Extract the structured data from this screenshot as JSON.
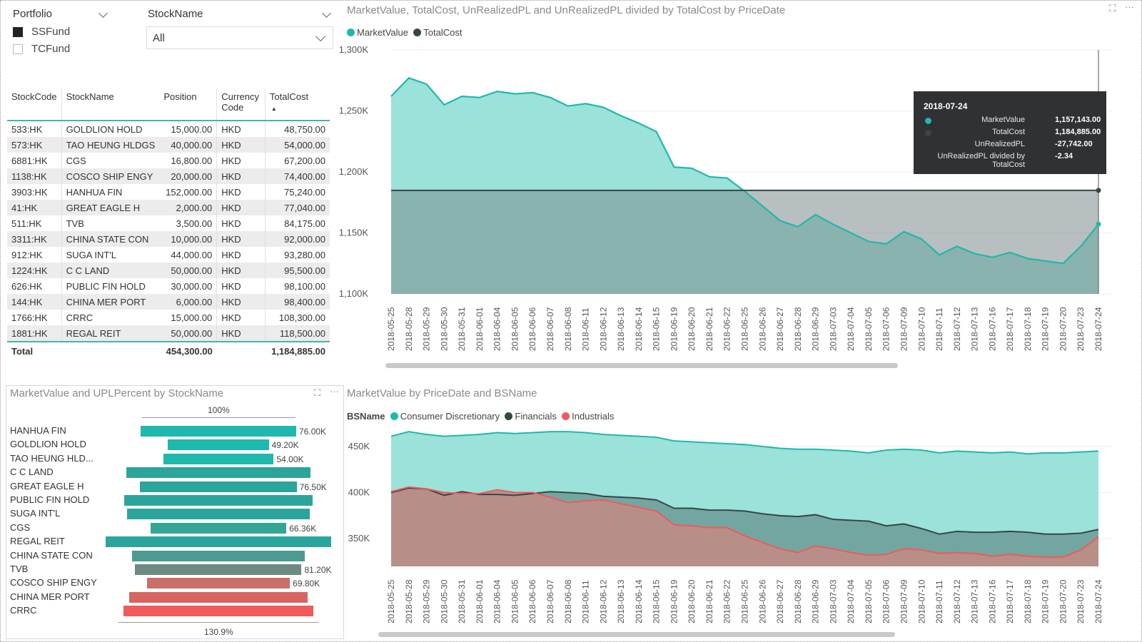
{
  "slicers": {
    "portfolio": {
      "title": "Portfolio",
      "items": [
        {
          "label": "SSFund",
          "checked": true
        },
        {
          "label": "TCFund",
          "checked": false
        }
      ]
    },
    "stockname": {
      "title": "StockName",
      "selected": "All"
    }
  },
  "table": {
    "headers": [
      "StockCode",
      "StockName",
      "Position",
      "Currency Code",
      "TotalCost"
    ],
    "rows": [
      [
        "533:HK",
        "GOLDLION HOLD",
        "15,000.00",
        "HKD",
        "48,750.00"
      ],
      [
        "573:HK",
        "TAO HEUNG HLDGS",
        "40,000.00",
        "HKD",
        "54,000.00"
      ],
      [
        "6881:HK",
        "CGS",
        "16,800.00",
        "HKD",
        "67,200.00"
      ],
      [
        "1138:HK",
        "COSCO SHIP ENGY",
        "20,000.00",
        "HKD",
        "74,400.00"
      ],
      [
        "3903:HK",
        "HANHUA FIN",
        "152,000.00",
        "HKD",
        "75,240.00"
      ],
      [
        "41:HK",
        "GREAT EAGLE H",
        "2,000.00",
        "HKD",
        "77,040.00"
      ],
      [
        "511:HK",
        "TVB",
        "3,500.00",
        "HKD",
        "84,175.00"
      ],
      [
        "3311:HK",
        "CHINA STATE CON",
        "10,000.00",
        "HKD",
        "92,000.00"
      ],
      [
        "912:HK",
        "SUGA INT'L",
        "44,000.00",
        "HKD",
        "93,280.00"
      ],
      [
        "1224:HK",
        "C C LAND",
        "50,000.00",
        "HKD",
        "95,500.00"
      ],
      [
        "626:HK",
        "PUBLIC FIN HOLD",
        "30,000.00",
        "HKD",
        "98,100.00"
      ],
      [
        "144:HK",
        "CHINA MER PORT",
        "6,000.00",
        "HKD",
        "98,400.00"
      ],
      [
        "1766:HK",
        "CRRC",
        "15,000.00",
        "HKD",
        "108,300.00"
      ],
      [
        "1881:HK",
        "REGAL REIT",
        "50,000.00",
        "HKD",
        "118,500.00"
      ]
    ],
    "total": {
      "label": "Total",
      "position": "454,300.00",
      "totalcost": "1,184,885.00"
    }
  },
  "chart_data": [
    {
      "type": "area",
      "title": "MarketValue, TotalCost, UnRealizedPL and UnRealizedPL divided by TotalCost by PriceDate",
      "categories": [
        "2018-05-25",
        "2018-05-28",
        "2018-05-29",
        "2018-05-30",
        "2018-05-31",
        "2018-06-01",
        "2018-06-04",
        "2018-06-05",
        "2018-06-06",
        "2018-06-07",
        "2018-06-08",
        "2018-06-11",
        "2018-06-12",
        "2018-06-13",
        "2018-06-14",
        "2018-06-15",
        "2018-06-19",
        "2018-06-20",
        "2018-06-21",
        "2018-06-22",
        "2018-06-25",
        "2018-06-26",
        "2018-06-27",
        "2018-06-28",
        "2018-06-29",
        "2018-07-03",
        "2018-07-04",
        "2018-07-05",
        "2018-07-06",
        "2018-07-09",
        "2018-07-10",
        "2018-07-11",
        "2018-07-12",
        "2018-07-13",
        "2018-07-16",
        "2018-07-17",
        "2018-07-18",
        "2018-07-19",
        "2018-07-20",
        "2018-07-23",
        "2018-07-24"
      ],
      "series": [
        {
          "name": "MarketValue",
          "color": "#1fb8ac",
          "values": [
            1262000,
            1277000,
            1272000,
            1255000,
            1262000,
            1261000,
            1266000,
            1264000,
            1265000,
            1261000,
            1254000,
            1256000,
            1253000,
            1246000,
            1240000,
            1233000,
            1204000,
            1203000,
            1196000,
            1195000,
            1184000,
            1172000,
            1160000,
            1155000,
            1165000,
            1157000,
            1150000,
            1143000,
            1141000,
            1151000,
            1145000,
            1132000,
            1139000,
            1133000,
            1130000,
            1134000,
            1129000,
            1127000,
            1125000,
            1139000,
            1157143
          ]
        },
        {
          "name": "TotalCost",
          "color": "#374649",
          "values": [
            1184885,
            1184885,
            1184885,
            1184885,
            1184885,
            1184885,
            1184885,
            1184885,
            1184885,
            1184885,
            1184885,
            1184885,
            1184885,
            1184885,
            1184885,
            1184885,
            1184885,
            1184885,
            1184885,
            1184885,
            1184885,
            1184885,
            1184885,
            1184885,
            1184885,
            1184885,
            1184885,
            1184885,
            1184885,
            1184885,
            1184885,
            1184885,
            1184885,
            1184885,
            1184885,
            1184885,
            1184885,
            1184885,
            1184885,
            1184885,
            1184885
          ]
        }
      ],
      "yticks": [
        "1,100K",
        "1,150K",
        "1,200K",
        "1,250K",
        "1,300K"
      ],
      "ylim": [
        1100000,
        1300000
      ],
      "tooltip": {
        "date": "2018-07-24",
        "rows": [
          {
            "label": "MarketValue",
            "value": "1,157,143.00",
            "color": "#1fb8ac"
          },
          {
            "label": "TotalCost",
            "value": "1,184,885.00",
            "color": "#374649"
          },
          {
            "label": "UnRealizedPL",
            "value": "-27,742.00"
          },
          {
            "label": "UnRealizedPL divided by TotalCost",
            "value": "-2.34"
          }
        ]
      }
    },
    {
      "type": "bar",
      "title": "MarketValue and UPLPercent by StockName",
      "top_label": "100%",
      "bottom_label": "130.9%",
      "categories": [
        "HANHUA FIN",
        "GOLDLION HOLD",
        "TAO HEUNG HLD...",
        "C C LAND",
        "GREAT EAGLE H",
        "PUBLIC FIN HOLD",
        "SUGA INT'L",
        "CGS",
        "REGAL REIT",
        "CHINA STATE CON",
        "TVB",
        "COSCO SHIP ENGY",
        "CHINA MER PORT",
        "CRRC"
      ],
      "values": [
        76000,
        49200,
        54000,
        90000,
        76500,
        92000,
        89000,
        66360,
        110000,
        84000,
        81200,
        69800,
        87000,
        93000
      ],
      "upl_percent": [
        101,
        101,
        101,
        94,
        99,
        94,
        95,
        99,
        93,
        91,
        96,
        94,
        88,
        85
      ],
      "value_labels": [
        "76.00K",
        "49.20K",
        "54.00K",
        "",
        "76.50K",
        "",
        "",
        "66.36K",
        "",
        "",
        "81.20K",
        "69.80K",
        "",
        ""
      ],
      "colors": [
        "#1fb8ac",
        "#1fb8ac",
        "#1fb8ac",
        "#2ba59c",
        "#2ba59c",
        "#2ba59c",
        "#2ba59c",
        "#33a596",
        "#2ba59c",
        "#4d9a90",
        "#6c8a82",
        "#c86f6a",
        "#d86460",
        "#f05a5a"
      ]
    },
    {
      "type": "area",
      "title": "MarketValue by PriceDate and BSName",
      "legend_title": "BSName",
      "categories": [
        "2018-05-25",
        "2018-05-28",
        "2018-05-29",
        "2018-05-30",
        "2018-05-31",
        "2018-06-01",
        "2018-06-04",
        "2018-06-05",
        "2018-06-06",
        "2018-06-07",
        "2018-06-08",
        "2018-06-11",
        "2018-06-12",
        "2018-06-13",
        "2018-06-14",
        "2018-06-15",
        "2018-06-19",
        "2018-06-20",
        "2018-06-21",
        "2018-06-22",
        "2018-06-25",
        "2018-06-26",
        "2018-06-27",
        "2018-06-28",
        "2018-06-29",
        "2018-07-03",
        "2018-07-04",
        "2018-07-05",
        "2018-07-06",
        "2018-07-09",
        "2018-07-10",
        "2018-07-11",
        "2018-07-12",
        "2018-07-13",
        "2018-07-16",
        "2018-07-17",
        "2018-07-18",
        "2018-07-19",
        "2018-07-20",
        "2018-07-23",
        "2018-07-24"
      ],
      "series": [
        {
          "name": "Consumer Discretionary",
          "color": "#1fb8ac",
          "values": [
            461000,
            466000,
            463000,
            461000,
            462000,
            463000,
            465000,
            464000,
            465000,
            466000,
            466000,
            465000,
            463000,
            462000,
            461000,
            460000,
            456000,
            455000,
            454000,
            453000,
            452000,
            450000,
            448000,
            447000,
            447000,
            446000,
            445000,
            443000,
            446000,
            447000,
            446000,
            443000,
            445000,
            444000,
            443000,
            444000,
            442000,
            443000,
            443000,
            444000,
            445000
          ]
        },
        {
          "name": "Financials",
          "color": "#374649",
          "values": [
            400000,
            405000,
            404000,
            397000,
            401000,
            398000,
            398000,
            397000,
            399000,
            401000,
            400000,
            399000,
            396000,
            395000,
            394000,
            392000,
            383000,
            383000,
            381000,
            381000,
            380000,
            377000,
            375000,
            374000,
            376000,
            371000,
            370000,
            369000,
            364000,
            366000,
            361000,
            355000,
            358000,
            357000,
            357000,
            358000,
            357000,
            355000,
            355000,
            356000,
            360000
          ]
        },
        {
          "name": "Industrials",
          "color": "#f05a5a",
          "values": [
            401000,
            406000,
            404000,
            400000,
            399000,
            399000,
            403000,
            400000,
            400000,
            395000,
            389000,
            391000,
            392000,
            388000,
            384000,
            380000,
            365000,
            364000,
            362000,
            362000,
            353000,
            346000,
            339000,
            335000,
            342000,
            339000,
            335000,
            332000,
            333000,
            339000,
            338000,
            334000,
            335000,
            334000,
            331000,
            333000,
            331000,
            330000,
            330000,
            338000,
            352000
          ]
        }
      ],
      "yticks": [
        "350K",
        "400K",
        "450K"
      ],
      "ylim": [
        320000,
        470000
      ]
    }
  ]
}
